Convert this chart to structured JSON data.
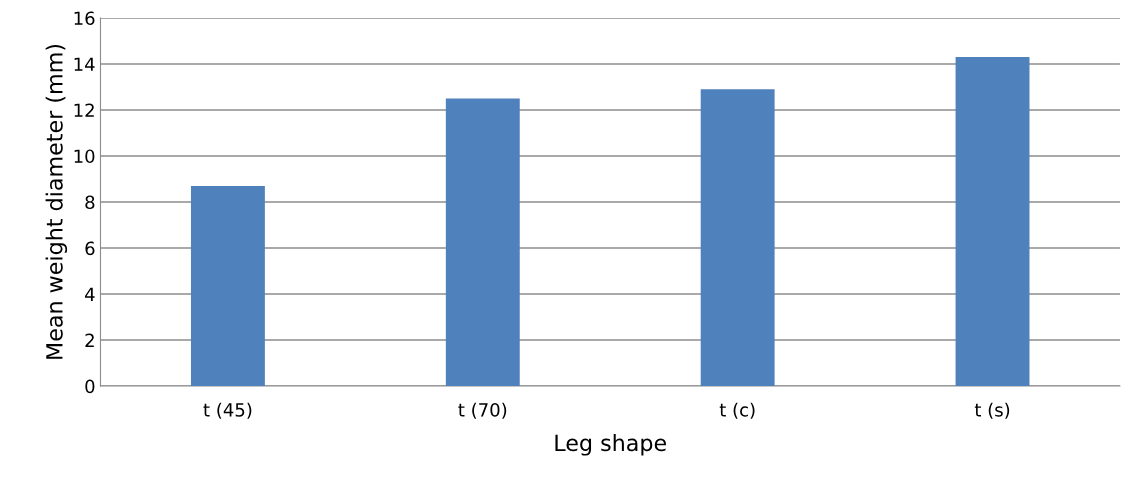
{
  "chart_data": {
    "type": "bar",
    "xlabel": "Leg shape",
    "ylabel": "Mean weight diameter (mm)",
    "categories": [
      "t (45)",
      "t (70)",
      "t (c)",
      "t (s)"
    ],
    "values": [
      8.7,
      12.5,
      12.9,
      14.3
    ],
    "color": "#4f81bd",
    "ylim": [
      0,
      16
    ],
    "yticks": [
      0,
      2,
      4,
      6,
      8,
      10,
      12,
      14,
      16
    ],
    "grid": "y",
    "legend": false
  }
}
